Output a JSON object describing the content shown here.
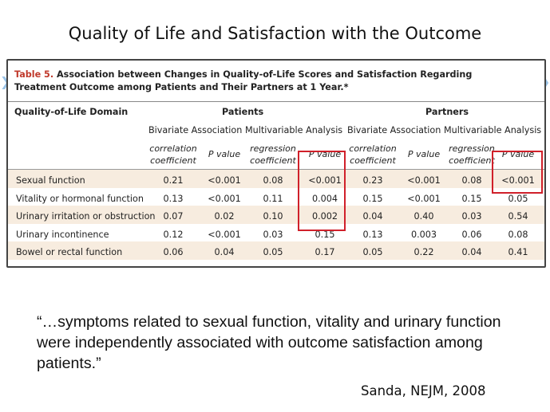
{
  "slide": {
    "title": "Quality of Life and Satisfaction with the Outcome",
    "quote": "“…symptoms related to sexual function, vitality and urinary function were independently associated with outcome satisfaction among patients.”",
    "citation": "Sanda, NEJM, 2008"
  },
  "table": {
    "label": "Table 5.",
    "caption": "Association between Changes in Quality-of-Life Scores and Satisfaction Regarding Treatment Outcome among Patients and Their Partners at 1 Year.*",
    "domain_header": "Quality-of-Life Domain",
    "groups": [
      "Patients",
      "Partners"
    ],
    "subgroups": [
      "Bivariate Association",
      "Multivariable Analysis",
      "Bivariate Association",
      "Multivariable Analysis"
    ],
    "columns": [
      "correlation coefficient",
      "P value",
      "regression coefficient",
      "P value",
      "correlation coefficient",
      "P value",
      "regression coefficient",
      "P value"
    ],
    "rows": [
      {
        "domain": "Sexual function",
        "values": [
          "0.21",
          "<0.001",
          "0.08",
          "<0.001",
          "0.23",
          "<0.001",
          "0.08",
          "<0.001"
        ]
      },
      {
        "domain": "Vitality or hormonal function",
        "values": [
          "0.13",
          "<0.001",
          "0.11",
          "0.004",
          "0.15",
          "<0.001",
          "0.15",
          "0.05"
        ]
      },
      {
        "domain": "Urinary irritation or obstruction",
        "values": [
          "0.07",
          "0.02",
          "0.10",
          "0.002",
          "0.04",
          "0.40",
          "0.03",
          "0.54"
        ]
      },
      {
        "domain": "Urinary incontinence",
        "values": [
          "0.12",
          "<0.001",
          "0.03",
          "0.15",
          "0.13",
          "0.003",
          "0.06",
          "0.08"
        ]
      },
      {
        "domain": "Bowel or rectal function",
        "values": [
          "0.06",
          "0.04",
          "0.05",
          "0.17",
          "0.05",
          "0.22",
          "0.04",
          "0.41"
        ]
      }
    ]
  },
  "colors": {
    "highlight": "#d0202a",
    "band": "#f7ecdf",
    "table_label": "#c0392b"
  }
}
